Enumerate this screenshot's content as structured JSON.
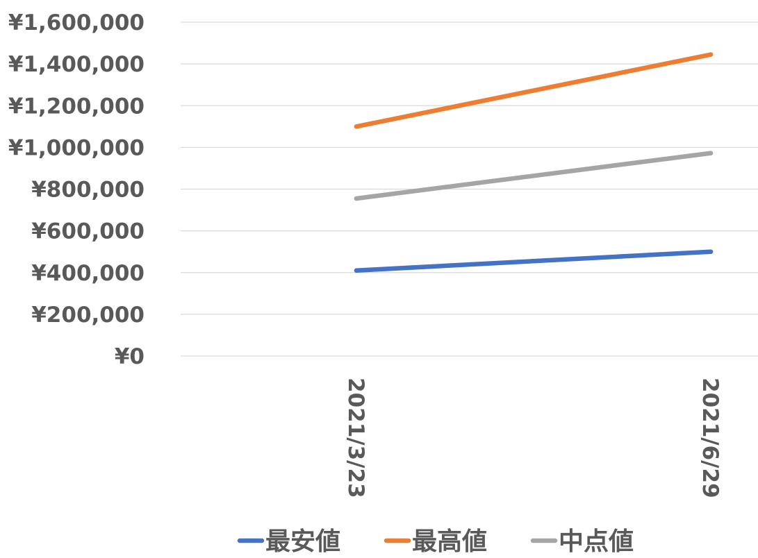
{
  "chart_data": {
    "type": "line",
    "title": "",
    "xlabel": "",
    "ylabel": "",
    "categories": [
      "2021/3/23",
      "2021/6/29"
    ],
    "y_tick_labels": [
      "¥0",
      "¥200,000",
      "¥400,000",
      "¥600,000",
      "¥800,000",
      "¥1,000,000",
      "¥1,200,000",
      "¥1,400,000",
      "¥1,600,000"
    ],
    "ylim": [
      0,
      1600000
    ],
    "y_step": 200000,
    "grid": true,
    "legend_position": "bottom",
    "series": [
      {
        "name": "最安値",
        "values": [
          410000,
          500000
        ],
        "color": "#4472C4"
      },
      {
        "name": "最高値",
        "values": [
          1100000,
          1445000
        ],
        "color": "#ED7D31"
      },
      {
        "name": "中点値",
        "values": [
          755000,
          972500
        ],
        "color": "#A5A5A5"
      }
    ]
  }
}
